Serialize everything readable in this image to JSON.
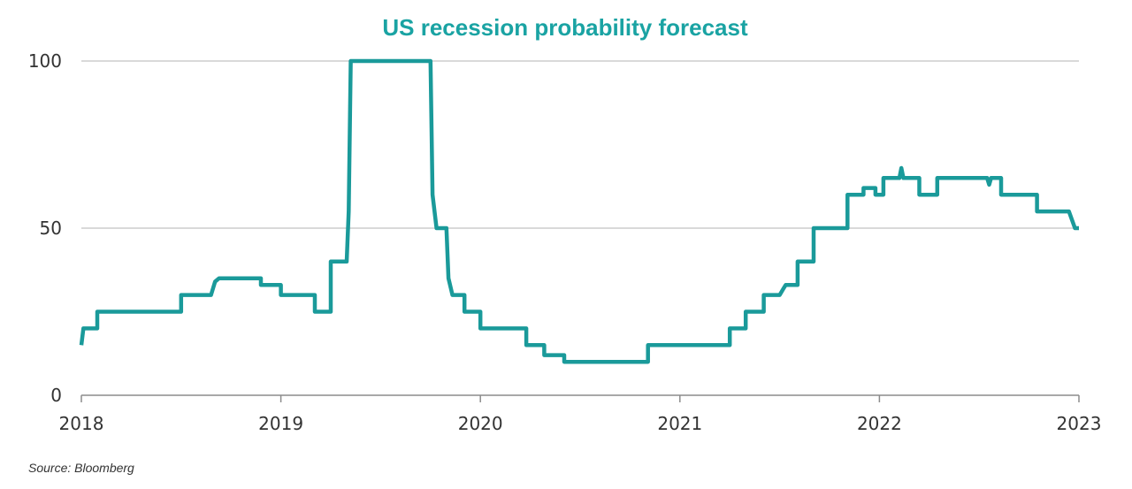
{
  "chart_data": {
    "type": "line",
    "title": "US recession probability forecast",
    "xlabel": "",
    "ylabel": "",
    "source": "Source: Bloomberg",
    "xlim": [
      2018,
      2023
    ],
    "ylim": [
      0,
      100
    ],
    "x_ticks": [
      "2018",
      "2019",
      "2020",
      "2021",
      "2022",
      "2023"
    ],
    "y_ticks": [
      "0",
      "50",
      "100"
    ],
    "grid": "horizontal",
    "legend": "none",
    "colors": {
      "line": "#1a9a9a",
      "title": "#1aa3a3",
      "grid": "#d9d9d9",
      "axis": "#8c8c8c"
    },
    "series": [
      {
        "values": [
          [
            2018.0,
            15
          ],
          [
            2018.01,
            20
          ],
          [
            2018.08,
            20
          ],
          [
            2018.08,
            25
          ],
          [
            2018.5,
            25
          ],
          [
            2018.5,
            30
          ],
          [
            2018.65,
            30
          ],
          [
            2018.67,
            34
          ],
          [
            2018.69,
            35
          ],
          [
            2018.9,
            35
          ],
          [
            2018.9,
            33
          ],
          [
            2019.0,
            33
          ],
          [
            2019.0,
            30
          ],
          [
            2019.17,
            30
          ],
          [
            2019.17,
            25
          ],
          [
            2019.25,
            25
          ],
          [
            2019.25,
            40
          ],
          [
            2019.33,
            40
          ],
          [
            2019.34,
            55
          ],
          [
            2019.35,
            100
          ],
          [
            2019.75,
            100
          ],
          [
            2019.76,
            60
          ],
          [
            2019.78,
            50
          ],
          [
            2019.83,
            50
          ],
          [
            2019.84,
            35
          ],
          [
            2019.86,
            30
          ],
          [
            2019.92,
            30
          ],
          [
            2019.92,
            25
          ],
          [
            2020.0,
            25
          ],
          [
            2020.0,
            20
          ],
          [
            2020.23,
            20
          ],
          [
            2020.23,
            15
          ],
          [
            2020.32,
            15
          ],
          [
            2020.32,
            12
          ],
          [
            2020.42,
            12
          ],
          [
            2020.42,
            10
          ],
          [
            2020.84,
            10
          ],
          [
            2020.84,
            15
          ],
          [
            2021.25,
            15
          ],
          [
            2021.25,
            20
          ],
          [
            2021.33,
            20
          ],
          [
            2021.33,
            25
          ],
          [
            2021.42,
            25
          ],
          [
            2021.42,
            30
          ],
          [
            2021.5,
            30
          ],
          [
            2021.52,
            32
          ],
          [
            2021.53,
            33
          ],
          [
            2021.59,
            33
          ],
          [
            2021.59,
            40
          ],
          [
            2021.67,
            40
          ],
          [
            2021.67,
            50
          ],
          [
            2021.84,
            50
          ],
          [
            2021.84,
            60
          ],
          [
            2021.92,
            60
          ],
          [
            2021.92,
            62
          ],
          [
            2021.98,
            62
          ],
          [
            2021.98,
            60
          ],
          [
            2022.02,
            60
          ],
          [
            2022.02,
            65
          ],
          [
            2022.1,
            65
          ],
          [
            2022.11,
            68
          ],
          [
            2022.12,
            65
          ],
          [
            2022.2,
            65
          ],
          [
            2022.2,
            60
          ],
          [
            2022.29,
            60
          ],
          [
            2022.29,
            65
          ],
          [
            2022.54,
            65
          ],
          [
            2022.55,
            63
          ],
          [
            2022.56,
            65
          ],
          [
            2022.61,
            65
          ],
          [
            2022.61,
            60
          ],
          [
            2022.79,
            60
          ],
          [
            2022.79,
            55
          ],
          [
            2022.95,
            55
          ],
          [
            2022.98,
            50
          ],
          [
            2023.0,
            50
          ]
        ]
      }
    ]
  }
}
